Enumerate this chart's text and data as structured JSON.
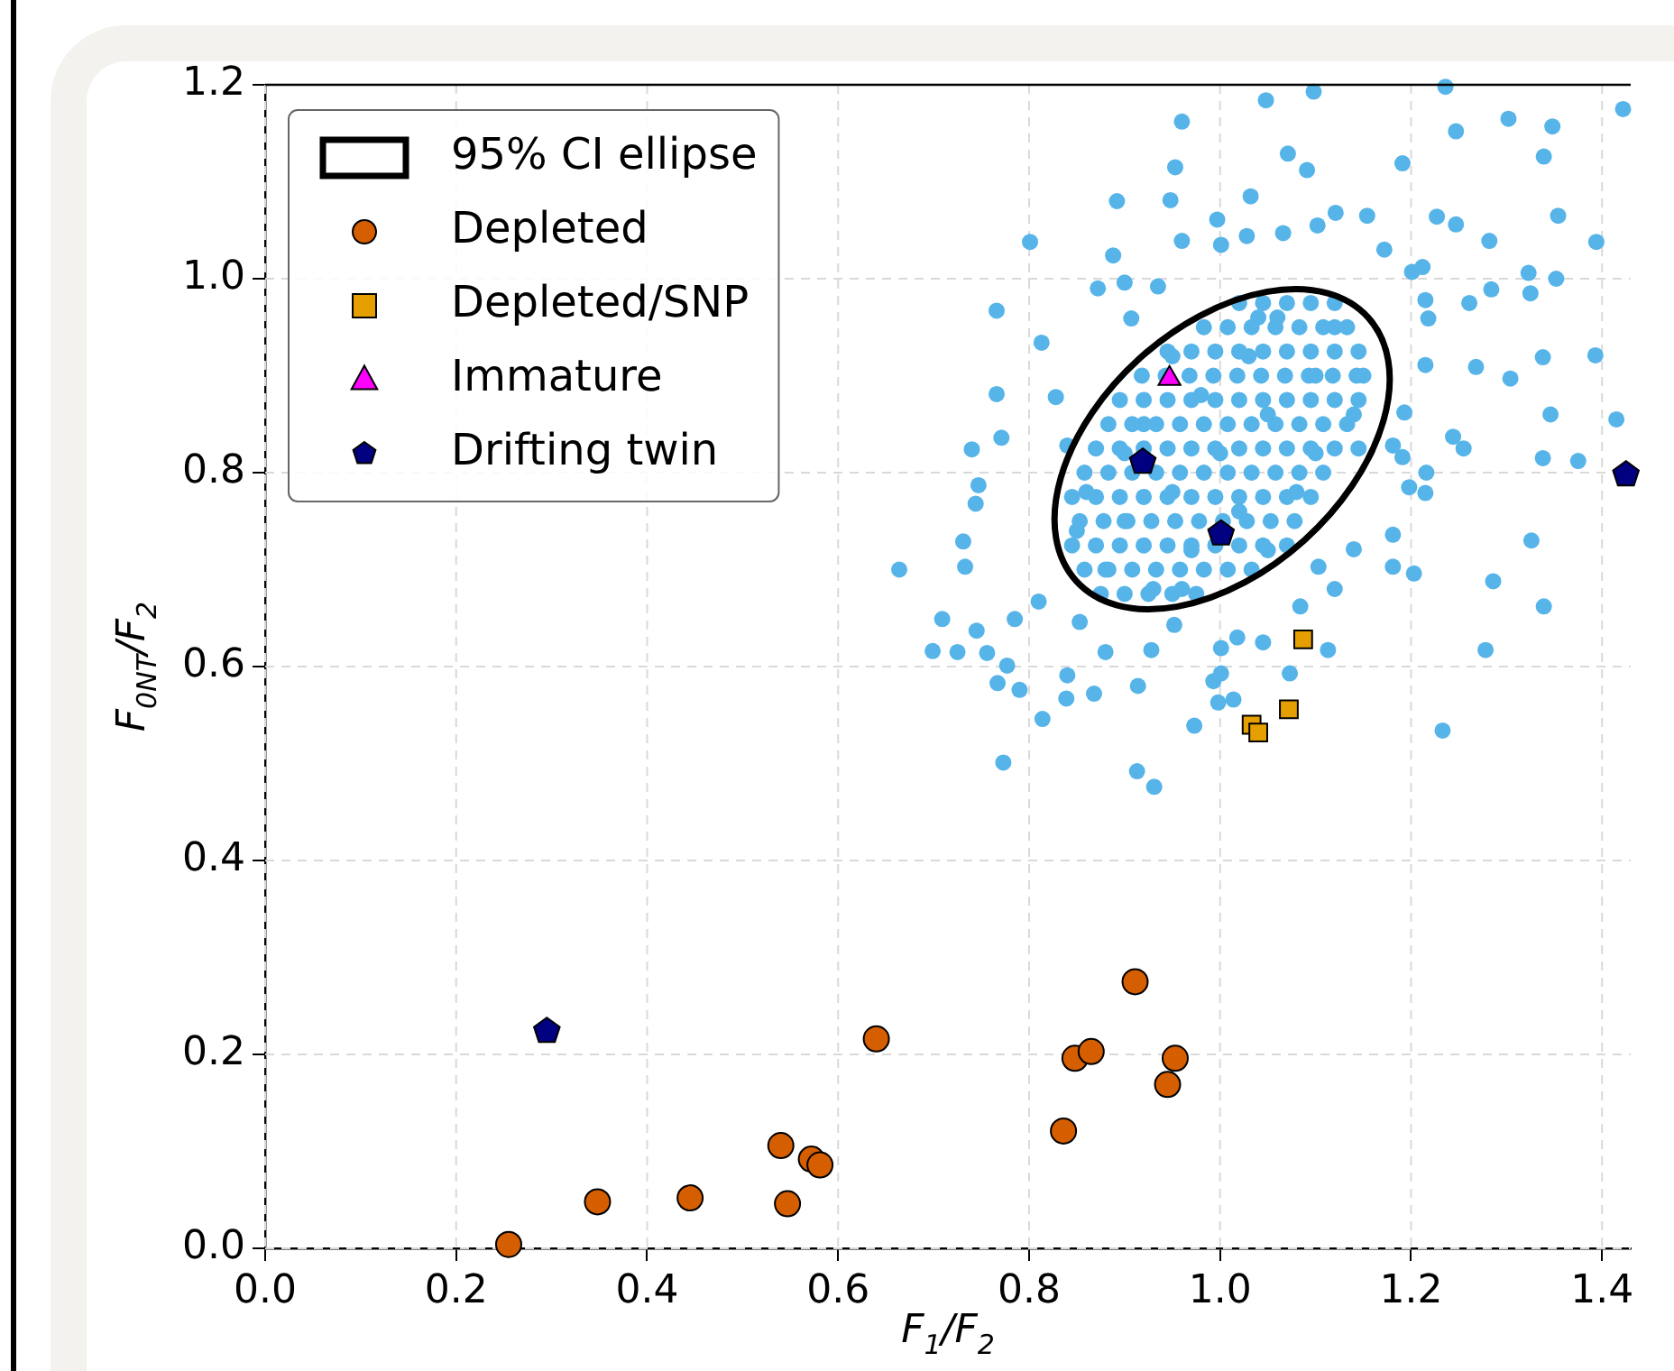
{
  "chart_data": {
    "type": "scatter",
    "xlabel": "F$_{1}$/F$_{2}$",
    "ylabel": "F$_{0NT}$/F$_{2}$",
    "xlim": [
      0,
      1.43
    ],
    "ylim": [
      0,
      1.2
    ],
    "xticks": [
      {
        "value": 0,
        "label": "0.0"
      },
      0.2,
      0.4,
      0.6,
      0.8,
      {
        "value": 1,
        "label": "1.0"
      },
      1.2,
      1.4
    ],
    "yticks": [
      {
        "value": 0,
        "label": "0.0"
      },
      0.2,
      0.4,
      0.6,
      0.8,
      {
        "value": 1,
        "label": "1.0"
      },
      1.2
    ],
    "grid": true,
    "legend": "top left",
    "annotations": [
      "95% CI ellipse"
    ],
    "series": [
      {
        "color": "#56b4e9",
        "marker": "circle",
        "x": [
          1.048,
          1.098,
          1.236,
          1.302,
          1.348,
          1.422,
          1.247,
          1.339,
          0.96,
          1.071,
          1.091,
          0.953,
          1.191,
          0.892,
          0.948,
          1.032,
          0.801,
          0.888,
          0.96,
          1.354,
          1.394,
          1.282,
          1.227,
          1.247,
          1.323,
          1.352,
          1.325,
          1.284,
          1.261,
          1.338,
          1.393,
          1.346,
          1.415,
          1.338,
          1.375,
          1.304,
          1.268,
          1.244,
          1.255,
          1.216,
          0.766,
          0.766,
          0.813,
          0.74,
          0.771,
          0.747,
          0.744,
          0.731,
          0.733,
          0.664,
          0.709,
          0.699,
          0.725,
          0.756,
          0.745,
          0.777,
          0.767,
          0.79,
          0.814,
          0.84,
          0.839,
          0.868,
          0.773,
          0.913,
          0.931,
          0.973,
          0.998,
          1.001,
          1.014,
          0.993,
          0.914,
          0.928,
          0.88,
          1.001,
          1.084,
          1.073,
          1.113,
          1.018,
          1.045,
          1.233,
          1.278,
          1.339,
          1.286,
          1.326,
          1.181,
          1.203,
          1.181,
          1.14,
          1.12,
          1.103,
          1.215,
          1.198,
          1.191,
          1.193,
          1.215,
          1.218,
          1.215,
          1.212,
          1.201,
          1.172,
          1.154,
          1.121,
          1.102,
          1.066,
          1.028,
          0.997,
          1.001,
          0.872,
          0.9,
          0.935,
          0.907,
          0.81,
          0.785,
          0.853,
          0.952,
          1.181,
          0.828,
          0.84,
          1.0,
          0.95,
          1.05,
          0.9,
          1.1,
          0.92,
          1.08,
          0.88,
          1.12,
          0.97,
          1.03,
          0.86,
          1.14,
          0.93,
          1.06,
          0.98,
          1.02,
          0.9,
          1.1,
          0.95,
          1.05,
          0.85,
          1.15,
          0.96,
          1.04,
          0.875,
          0.9,
          0.925,
          0.95,
          0.975,
          0.858,
          0.883,
          0.908,
          0.933,
          0.958,
          0.983,
          1.008,
          1.033,
          0.845,
          0.87,
          0.895,
          0.92,
          0.945,
          0.97,
          0.995,
          1.02,
          1.045,
          1.07,
          0.853,
          0.878,
          0.903,
          0.928,
          0.953,
          0.978,
          1.003,
          1.028,
          1.053,
          1.078,
          0.845,
          0.87,
          0.895,
          0.92,
          0.945,
          0.97,
          0.995,
          1.02,
          1.045,
          1.07,
          1.095,
          0.858,
          0.883,
          0.908,
          0.933,
          0.958,
          0.983,
          1.008,
          1.033,
          1.058,
          1.083,
          1.108,
          0.87,
          0.895,
          0.92,
          0.945,
          0.97,
          0.995,
          1.02,
          1.045,
          1.07,
          1.095,
          1.12,
          1.145,
          0.883,
          0.908,
          0.933,
          0.958,
          0.983,
          1.008,
          1.033,
          1.058,
          1.083,
          1.108,
          1.133,
          0.895,
          0.92,
          0.945,
          0.97,
          0.995,
          1.02,
          1.045,
          1.07,
          1.095,
          1.12,
          1.145,
          0.918,
          0.943,
          0.968,
          0.993,
          1.018,
          1.043,
          1.068,
          1.093,
          1.118,
          1.143,
          0.945,
          0.97,
          0.995,
          1.02,
          1.045,
          1.07,
          1.095,
          1.12,
          1.145,
          0.983,
          1.008,
          1.033,
          1.058,
          1.083,
          1.108,
          1.133,
          1.02,
          1.045,
          1.07,
          1.095,
          1.12
        ],
        "values": [
          1.184,
          1.193,
          1.198,
          1.165,
          1.157,
          1.175,
          1.152,
          1.126,
          1.162,
          1.129,
          1.112,
          1.115,
          1.119,
          1.08,
          1.081,
          1.085,
          1.038,
          1.024,
          1.039,
          1.065,
          1.038,
          1.039,
          1.064,
          1.056,
          1.006,
          1.0,
          0.985,
          0.989,
          0.975,
          0.919,
          0.921,
          0.86,
          0.855,
          0.815,
          0.812,
          0.897,
          0.909,
          0.837,
          0.825,
          0.8,
          0.967,
          0.881,
          0.934,
          0.824,
          0.836,
          0.787,
          0.768,
          0.729,
          0.703,
          0.7,
          0.649,
          0.616,
          0.615,
          0.614,
          0.637,
          0.601,
          0.583,
          0.576,
          0.546,
          0.591,
          0.567,
          0.572,
          0.501,
          0.492,
          0.476,
          0.539,
          0.563,
          0.593,
          0.566,
          0.585,
          0.58,
          0.617,
          0.615,
          0.619,
          0.662,
          0.593,
          0.617,
          0.63,
          0.625,
          0.534,
          0.617,
          0.662,
          0.688,
          0.73,
          0.703,
          0.696,
          0.736,
          0.721,
          0.68,
          0.703,
          0.779,
          0.785,
          0.816,
          0.862,
          0.911,
          0.959,
          0.978,
          1.012,
          1.007,
          1.03,
          1.065,
          1.068,
          1.055,
          1.047,
          1.044,
          1.061,
          1.035,
          0.99,
          0.996,
          0.992,
          0.959,
          0.667,
          0.649,
          0.646,
          0.643,
          0.828,
          0.878,
          0.828,
          0.82,
          0.78,
          0.86,
          0.75,
          0.9,
          0.85,
          0.78,
          0.7,
          0.95,
          0.72,
          0.92,
          0.78,
          0.86,
          0.68,
          0.96,
          0.88,
          0.76,
          0.82,
          0.82,
          0.92,
          0.72,
          0.74,
          0.9,
          0.68,
          0.96,
          0.675,
          0.675,
          0.675,
          0.675,
          0.675,
          0.7,
          0.7,
          0.7,
          0.7,
          0.7,
          0.7,
          0.7,
          0.7,
          0.725,
          0.725,
          0.725,
          0.725,
          0.725,
          0.725,
          0.725,
          0.725,
          0.725,
          0.725,
          0.75,
          0.75,
          0.75,
          0.75,
          0.75,
          0.75,
          0.75,
          0.75,
          0.75,
          0.75,
          0.775,
          0.775,
          0.775,
          0.775,
          0.775,
          0.775,
          0.775,
          0.775,
          0.775,
          0.775,
          0.775,
          0.8,
          0.8,
          0.8,
          0.8,
          0.8,
          0.8,
          0.8,
          0.8,
          0.8,
          0.8,
          0.8,
          0.825,
          0.825,
          0.825,
          0.825,
          0.825,
          0.825,
          0.825,
          0.825,
          0.825,
          0.825,
          0.825,
          0.825,
          0.85,
          0.85,
          0.85,
          0.85,
          0.85,
          0.85,
          0.85,
          0.85,
          0.85,
          0.85,
          0.85,
          0.875,
          0.875,
          0.875,
          0.875,
          0.875,
          0.875,
          0.875,
          0.875,
          0.875,
          0.875,
          0.875,
          0.9,
          0.9,
          0.9,
          0.9,
          0.9,
          0.9,
          0.9,
          0.9,
          0.9,
          0.9,
          0.925,
          0.925,
          0.925,
          0.925,
          0.925,
          0.925,
          0.925,
          0.925,
          0.925,
          0.95,
          0.95,
          0.95,
          0.95,
          0.95,
          0.95,
          0.95,
          0.975,
          0.975,
          0.975,
          0.975,
          0.975
        ]
      },
      {
        "name": "Depleted",
        "color": "#d55e00",
        "marker": "circle",
        "x": [
          0.255,
          0.348,
          0.445,
          0.54,
          0.547,
          0.572,
          0.581,
          0.64,
          0.836,
          0.848,
          0.865,
          0.911,
          0.945,
          0.953
        ],
        "values": [
          0.004,
          0.048,
          0.052,
          0.106,
          0.046,
          0.092,
          0.086,
          0.216,
          0.121,
          0.196,
          0.203,
          0.275,
          0.169,
          0.196
        ]
      },
      {
        "name": "Depleted/SNP",
        "color": "#e69f00",
        "marker": "square",
        "x": [
          1.087,
          1.072,
          1.033,
          1.04
        ],
        "values": [
          0.628,
          0.556,
          0.54,
          0.532
        ]
      },
      {
        "name": "Immature",
        "color": "#ff00ff",
        "marker": "triangle",
        "x": [
          0.947
        ],
        "values": [
          0.897
        ]
      },
      {
        "name": "Drifting twin",
        "color": "#000080",
        "x": [
          0.295,
          0.919,
          1.001,
          1.425
        ],
        "values": [
          0.224,
          0.811,
          0.737,
          0.798
        ]
      }
    ]
  }
}
